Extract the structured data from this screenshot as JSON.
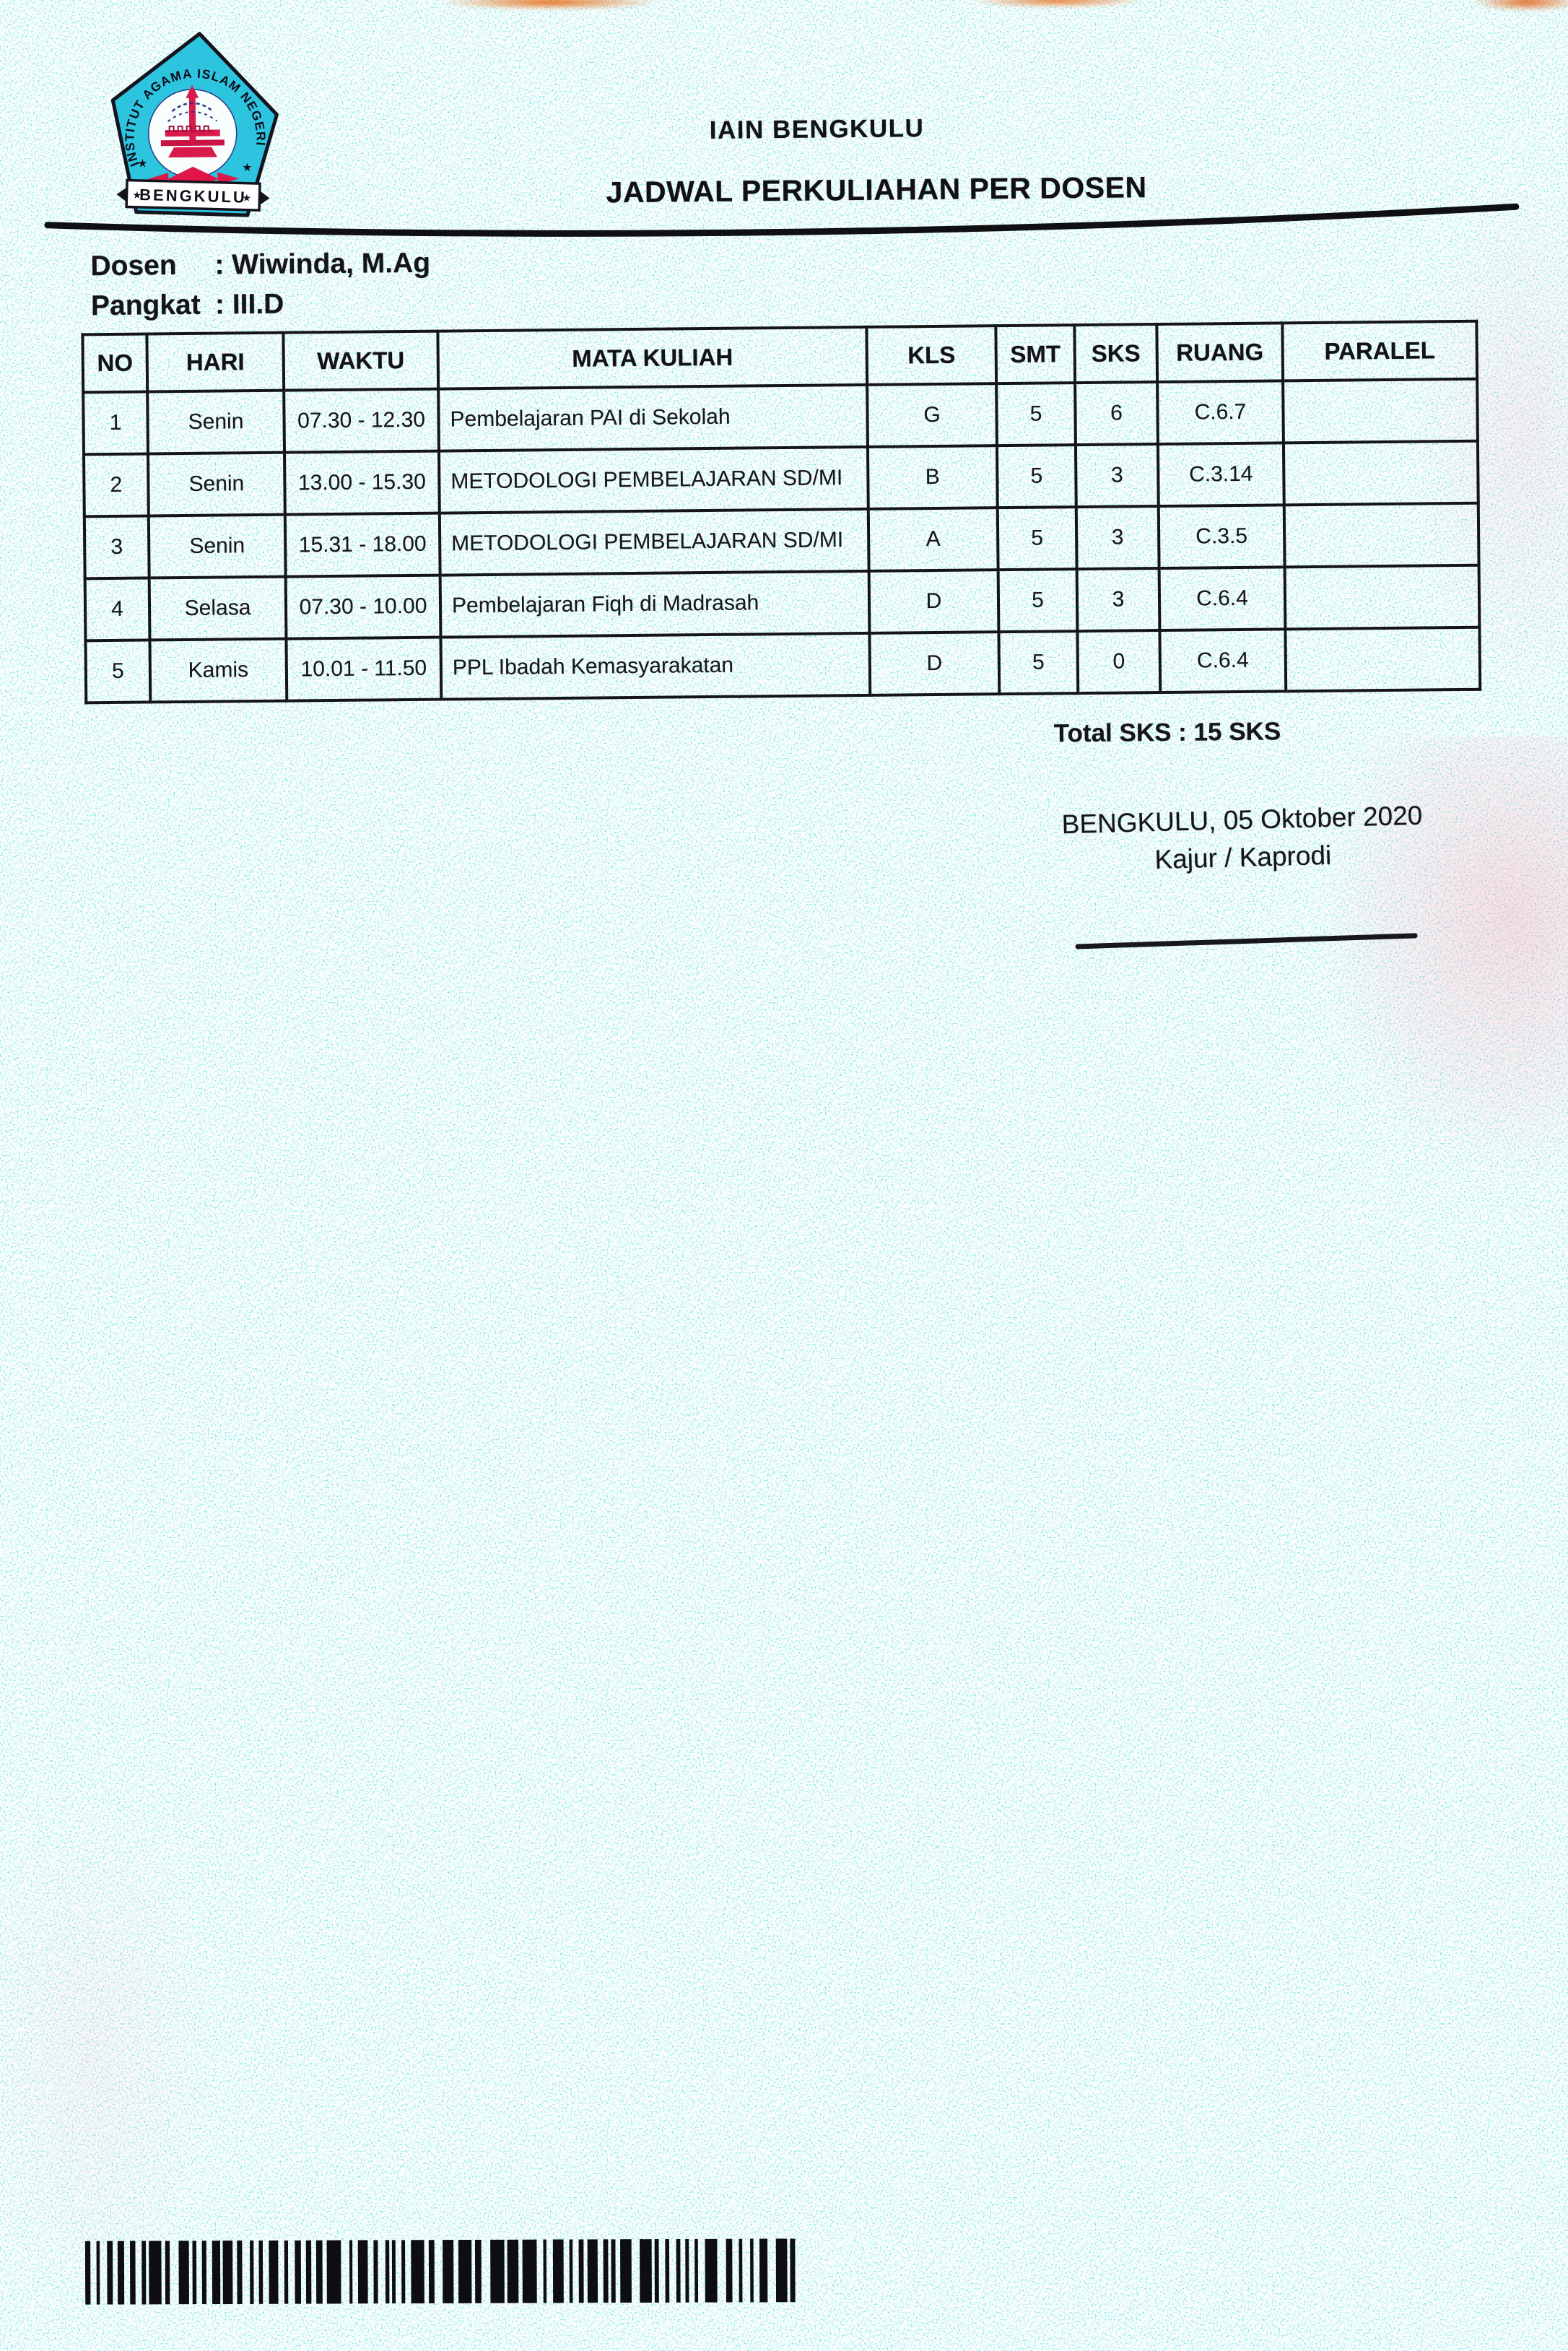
{
  "header": {
    "institution": "IAIN BENGKULU",
    "title": "JADWAL PERKULIAHAN PER DOSEN"
  },
  "logo": {
    "arc_text": "INSTITUT AGAMA ISLAM NEGERI",
    "ribbon_text": "BENGKULU",
    "colors": {
      "shield": "#2dc4e0",
      "outline": "#14141e",
      "emblem_red": "#d81b4b",
      "emblem_navy": "#2a3480"
    }
  },
  "info": {
    "dosen_label": "Dosen",
    "dosen_value": ": Wiwinda, M.Ag",
    "pangkat_label": "Pangkat",
    "pangkat_value": ": III.D"
  },
  "table": {
    "headers": [
      "NO",
      "HARI",
      "WAKTU",
      "MATA KULIAH",
      "KLS",
      "SMT",
      "SKS",
      "RUANG",
      "PARALEL"
    ],
    "rows": [
      [
        "1",
        "Senin",
        "07.30 - 12.30",
        "Pembelajaran PAI di Sekolah",
        "G",
        "5",
        "6",
        "C.6.7",
        ""
      ],
      [
        "2",
        "Senin",
        "13.00 - 15.30",
        "METODOLOGI PEMBELAJARAN SD/MI",
        "B",
        "5",
        "3",
        "C.3.14",
        ""
      ],
      [
        "3",
        "Senin",
        "15.31 - 18.00",
        "METODOLOGI PEMBELAJARAN SD/MI",
        "A",
        "5",
        "3",
        "C.3.5",
        ""
      ],
      [
        "4",
        "Selasa",
        "07.30 - 10.00",
        "Pembelajaran Fiqh di Madrasah",
        "D",
        "5",
        "3",
        "C.6.4",
        ""
      ],
      [
        "5",
        "Kamis",
        "10.01 - 11.50",
        "PPL Ibadah Kemasyarakatan",
        "D",
        "5",
        "0",
        "C.6.4",
        ""
      ]
    ]
  },
  "footer": {
    "total_sks": "Total SKS : 15 SKS",
    "place_date": "BENGKULU, 05 Oktober 2020",
    "signer_role": "Kajur / Kaprodi"
  }
}
